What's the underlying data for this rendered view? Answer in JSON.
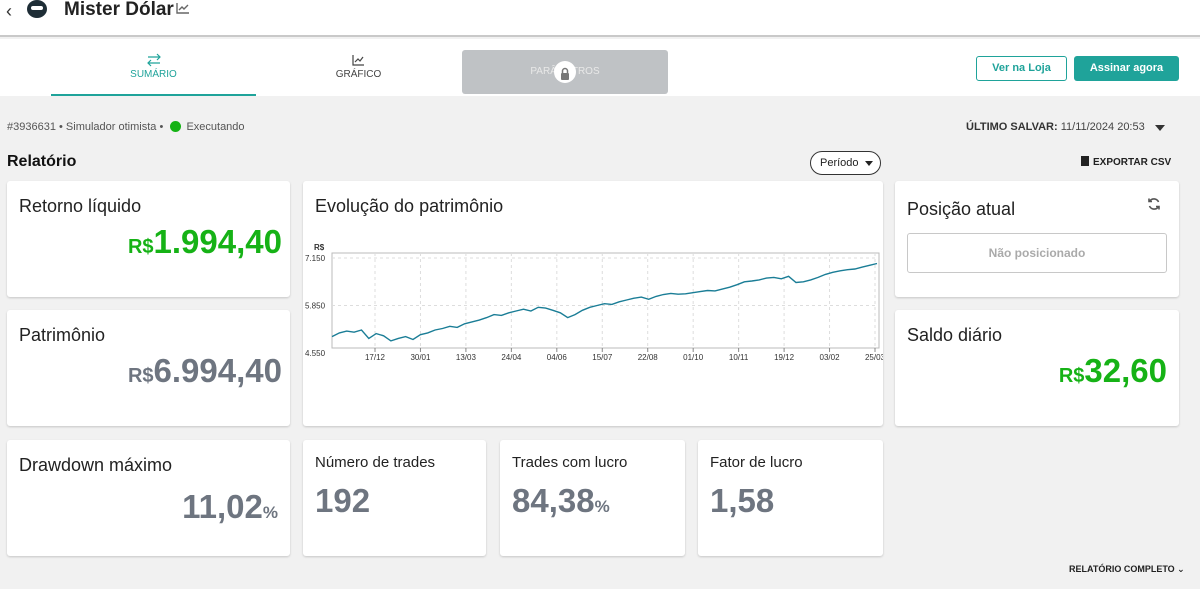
{
  "header": {
    "title": "Mister Dólar"
  },
  "tabs": [
    {
      "label": "SUMÁRIO"
    },
    {
      "label": "GRÁFICO"
    },
    {
      "label": "PARÂMETROS"
    }
  ],
  "actions": {
    "store_label": "Ver na Loja",
    "subscribe_label": "Assinar agora"
  },
  "meta": {
    "id": "#3936631",
    "simulator": "Simulador otimista",
    "status": "Executando",
    "last_saved_label": "ÚLTIMO SALVAR:",
    "last_saved_value": "11/11/2024 20:53"
  },
  "report": {
    "title": "Relatório",
    "period_label": "Período",
    "export_label": "EXPORTAR CSV",
    "full_report_label": "RELATÓRIO COMPLETO"
  },
  "cards": {
    "net_return": {
      "label": "Retorno líquido",
      "currency": "R$",
      "value": "1.994,40"
    },
    "equity": {
      "label": "Patrimônio",
      "currency": "R$",
      "value": "6.994,40"
    },
    "drawdown": {
      "label": "Drawdown máximo",
      "value": "11,02",
      "unit": "%"
    },
    "trades": {
      "label": "Número de trades",
      "value": "192"
    },
    "winning": {
      "label": "Trades com lucro",
      "value": "84,38",
      "unit": "%"
    },
    "profit_factor": {
      "label": "Fator de lucro",
      "value": "1,58"
    },
    "position": {
      "label": "Posição atual",
      "value": "Não posicionado"
    },
    "daily": {
      "label": "Saldo diário",
      "currency": "R$",
      "value": "32,60"
    },
    "evolution": {
      "label": "Evolução do patrimônio"
    }
  },
  "colors": {
    "accent": "#1fa39a",
    "positive": "#16b216",
    "line": "#1a7d96"
  },
  "chart_data": {
    "type": "line",
    "title": "Evolução do patrimônio",
    "ylabel": "R$",
    "ylim": [
      4550,
      7150
    ],
    "yticks": [
      "4.550",
      "5.850",
      "7.150"
    ],
    "xticks": [
      "17/12",
      "30/01",
      "13/03",
      "24/04",
      "04/06",
      "15/07",
      "22/08",
      "01/10",
      "10/11",
      "19/12",
      "03/02",
      "25/03"
    ],
    "grid": true,
    "series": [
      {
        "values": [
          5000,
          5100,
          5150,
          5120,
          5180,
          4950,
          5080,
          5020,
          4880,
          4950,
          5000,
          4920,
          5050,
          5100,
          5180,
          5220,
          5280,
          5250,
          5350,
          5400,
          5450,
          5520,
          5600,
          5580,
          5650,
          5700,
          5750,
          5700,
          5800,
          5780,
          5720,
          5650,
          5520,
          5600,
          5720,
          5800,
          5850,
          5900,
          5880,
          5950,
          6000,
          6050,
          6080,
          6020,
          6100,
          6150,
          6180,
          6160,
          6170,
          6200,
          6230,
          6260,
          6250,
          6300,
          6350,
          6420,
          6500,
          6520,
          6550,
          6600,
          6620,
          6580,
          6650,
          6480,
          6500,
          6550,
          6620,
          6700,
          6760,
          6800,
          6830,
          6850,
          6900,
          6950,
          7000
        ]
      }
    ]
  }
}
